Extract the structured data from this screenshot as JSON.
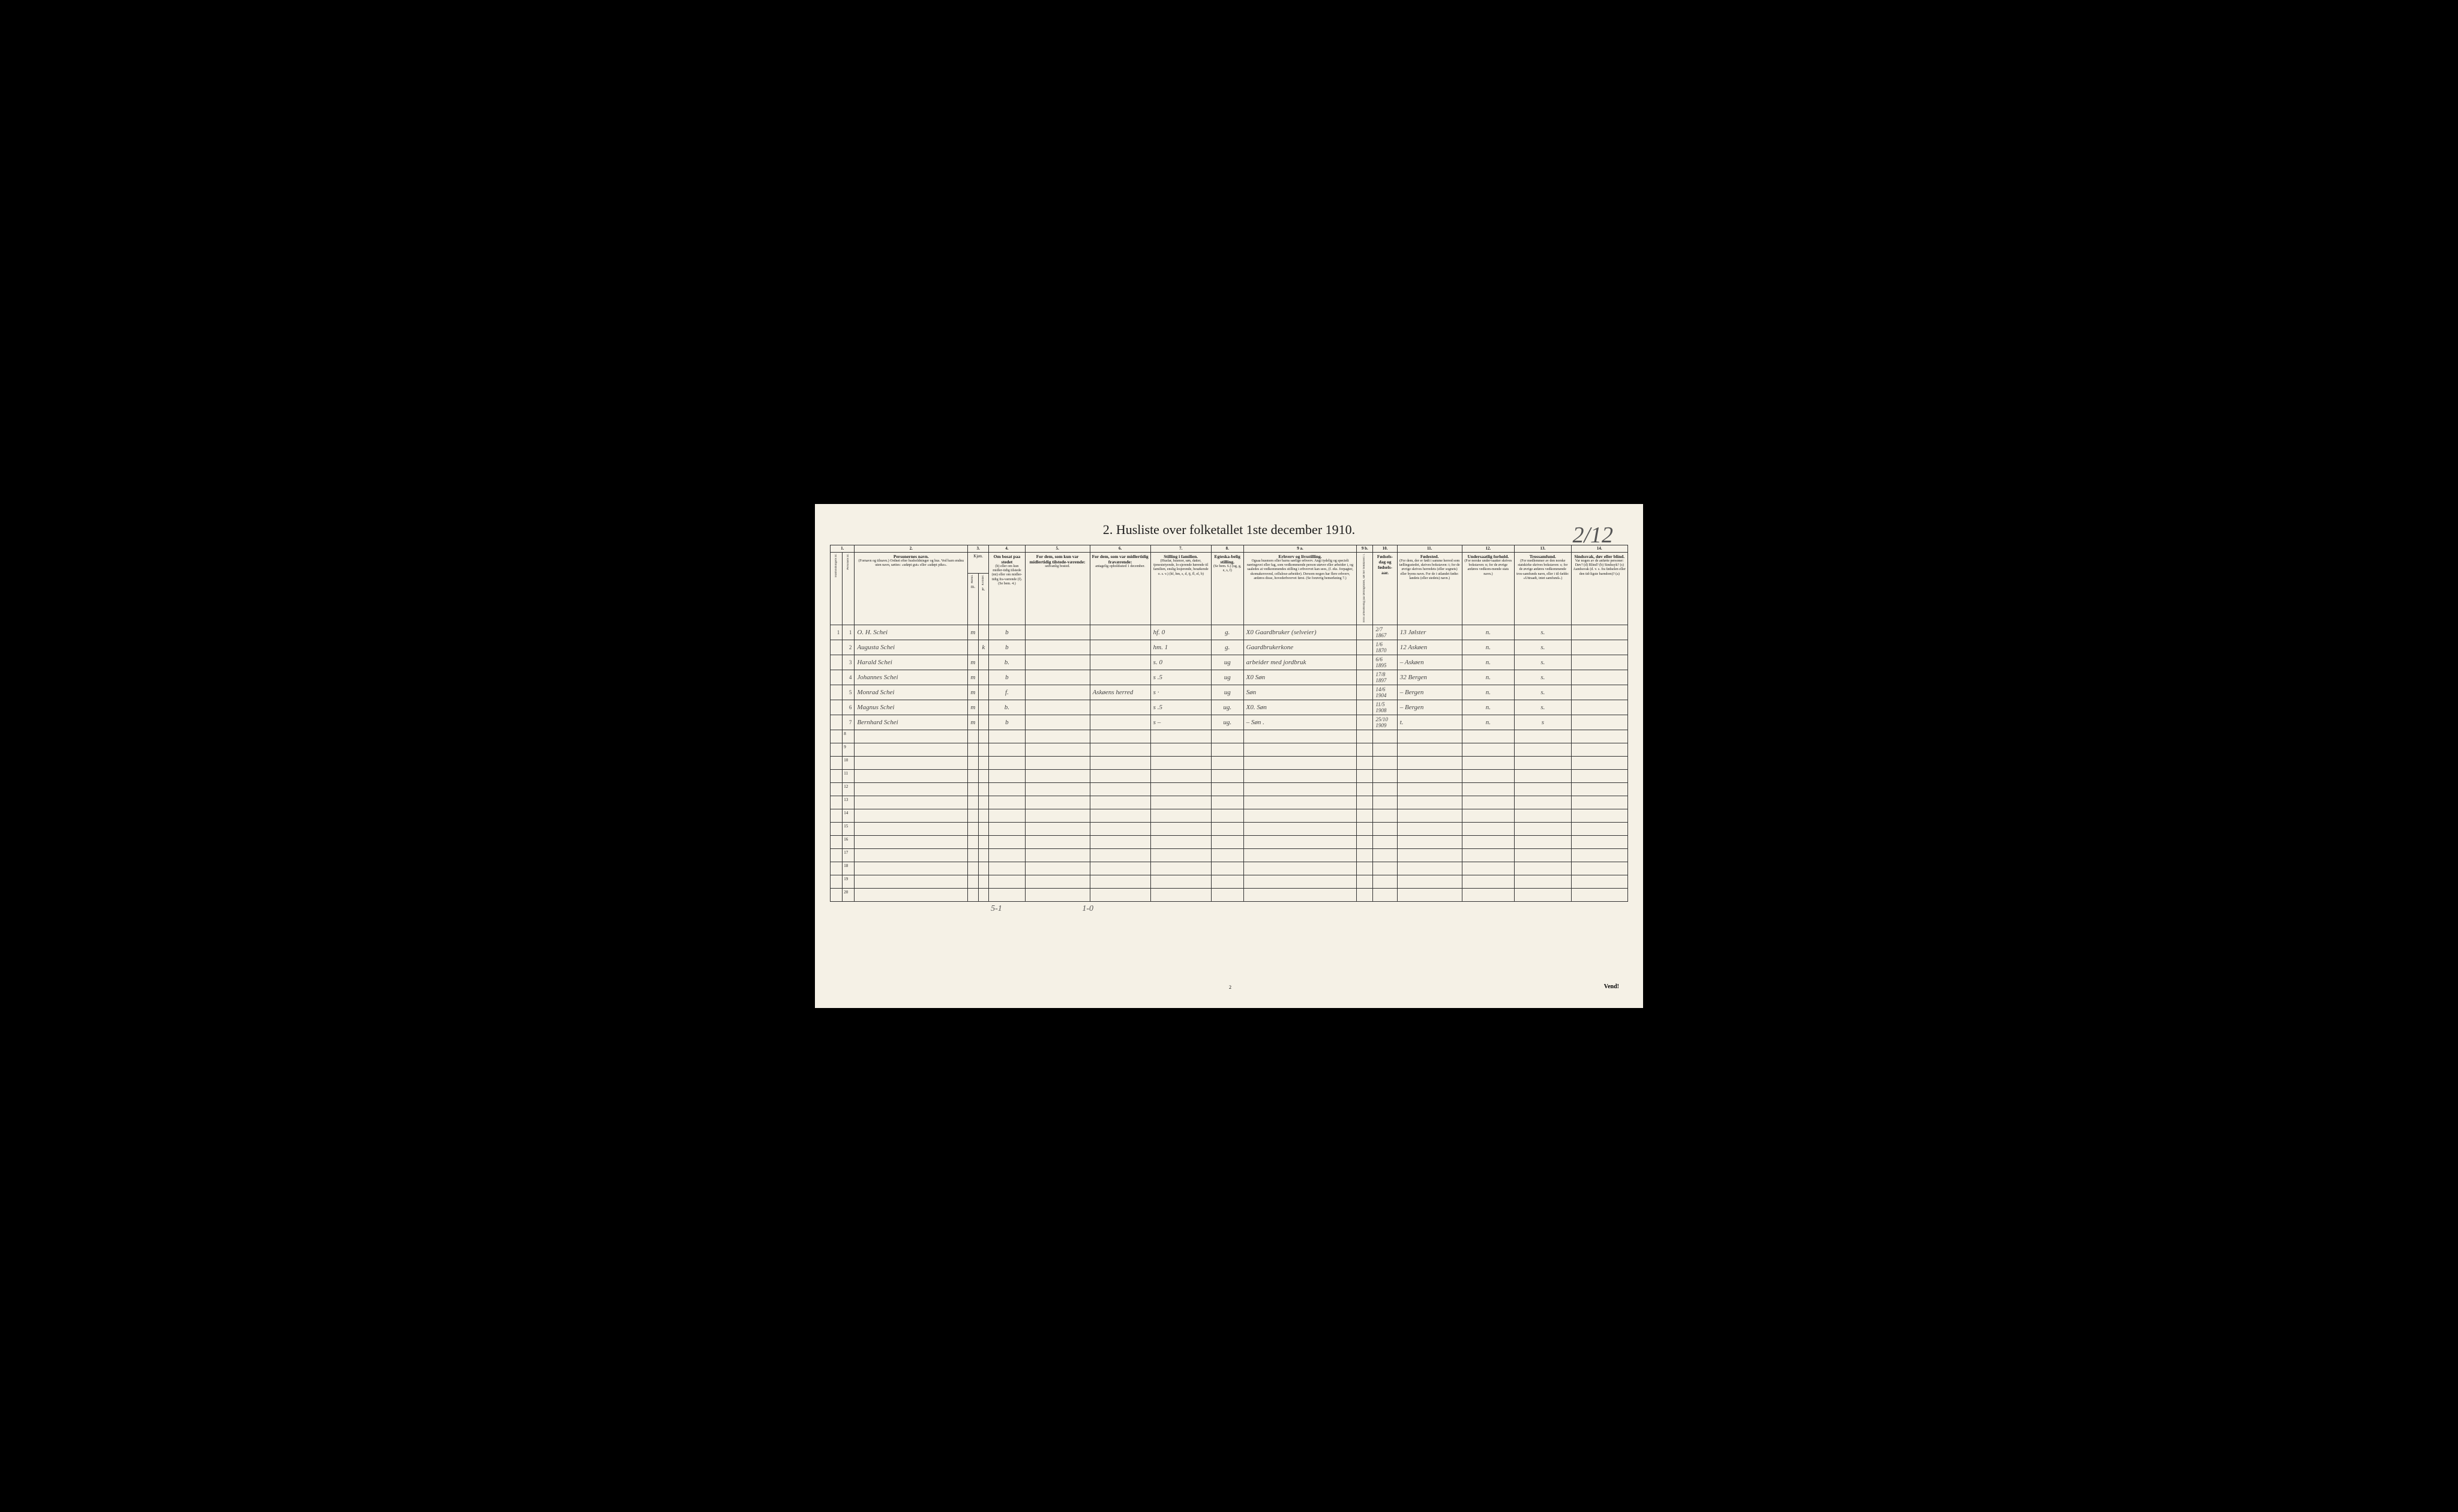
{
  "handwritten_page": "2/12",
  "title": "2.  Husliste over folketallet 1ste december 1910.",
  "column_numbers": [
    "1.",
    "",
    "2.",
    "3.",
    "",
    "4.",
    "5.",
    "6.",
    "7.",
    "8.",
    "9 a.",
    "9 b.",
    "10.",
    "11.",
    "12.",
    "13.",
    "14."
  ],
  "headers": {
    "col1": "Husholdningens nr.",
    "col1b": "Personens nr.",
    "col2_main": "Personernes navn.",
    "col2_sub": "(Fornavn og tilnavn.)\nOrdnet efter husholdninger og hus.\nVed barn endnu uten navn, sættes: «udøpt gut» eller «udøpt pike».",
    "col3": "Kjøn.",
    "col3_m": "Mænd.",
    "col3_k": "Kvinder.",
    "col4_main": "Om bosat paa stedet",
    "col4_sub": "(b) eller om kun midler-tidig tilstede (mt) eller om midler-tidig fra-værende (f).\n(Se bem. 4.)",
    "col5_main": "For dem, som kun var midlertidig tilstede-værende:",
    "col5_sub": "sedvanlig bosted.",
    "col6_main": "For dem, som var midlertidig fraværende:",
    "col6_sub": "antagelig opholdssted 1 december.",
    "col7_main": "Stilling i familien.",
    "col7_sub": "(Husfar, husmor, søn, datter, tjenestetyende, lo-sjerende hørende til familien, enslig losjerende, besøkende o. s. v.)\n(hf, hm, s, d, tj, fl, el, b)",
    "col8_main": "Egteska-belig stilling.",
    "col8_sub": "(Se bem. 6.)\n(ug, g, e, s, f)",
    "col9a_main": "Erhverv og livsstilling.",
    "col9a_sub": "Ogsaa husmors eller barns særlige erhverv. Angi tydelig og specielt næringsvei eller fag, som vedkommende person utøver eller arbeider i, og saaledes at vedkommendes stilling i erhvervet kan sees, (f. eks. forpagter, skomakersvend, cellulose-arbeider). Dersom nogen har flere erhverv, anføres disse, hovederhvervet først.\n(Se forøvrig bemerkning 7.)",
    "col9b": "Hvis arbeidsledig paa tællingstiden, sæt her bokstaven: l.",
    "col10_main": "Fødsels-dag og fødsels-aar.",
    "col11_main": "Fødested.",
    "col11_sub": "(For dem, der er født i samme herred som tællingsstedet, skrives bokstaven: t; for de øvrige skrives herredets (eller sognets) eller byens navn. For de i utlandet fødte: landets (eller stedets) navn.)",
    "col12_main": "Undersaatlig forhold.",
    "col12_sub": "(For norske under-saatter skrives bokstaven: n; for de øvrige anføres vedkom-mende stats navn.)",
    "col13_main": "Trossamfund.",
    "col13_sub": "(For medlemmer av den norske statskirke skrives bokstaven: s; for de øvrige anføres vedkommende tros-samfunds navn, eller i til-fælde: «Uttraadt, intet samfund».)",
    "col14_main": "Sindssvak, døv eller blind.",
    "col14_sub": "Var nogen av de anførte personer:\nDøv? (d)\nBlind? (b)\nSindssyk? (s)\nAandssvak (d. v. s. fra fødselen eller den tid-ligste barndom)? (a)"
  },
  "rows": [
    {
      "hnum": "1",
      "pnum": "1",
      "name": "O. H. Schei",
      "m": "m",
      "k": "",
      "b": "b",
      "col5": "",
      "col6": "",
      "col7": "hf.       0",
      "col8": "g.",
      "col9a": "X0 Gaardbruker (selveier)",
      "col9b": "",
      "col10": "2/7 1867",
      "col11": "13 Jølster",
      "col12": "n.",
      "col13": "s.",
      "col14": ""
    },
    {
      "hnum": "",
      "pnum": "2",
      "name": "Augusta Schei",
      "m": "",
      "k": "k",
      "b": "b",
      "col5": "",
      "col6": "",
      "col7": "hm.      1",
      "col8": "g.",
      "col9a": "Gaardbrukerkone",
      "col9b": "",
      "col10": "1/6 1870",
      "col11": "12 Askøen",
      "col12": "n.",
      "col13": "s.",
      "col14": ""
    },
    {
      "hnum": "",
      "pnum": "3",
      "name": "Harald Schei",
      "m": "m",
      "k": "",
      "b": "b.",
      "col5": "",
      "col6": "",
      "col7": "s.       0",
      "col8": "ug",
      "col9a": "arbeider med jordbruk",
      "col9b": "",
      "col10": "6/6 1895",
      "col11": "– Askøen",
      "col12": "n.",
      "col13": "s.",
      "col14": ""
    },
    {
      "hnum": "",
      "pnum": "4",
      "name": "Johannes Schei",
      "m": "m",
      "k": "",
      "b": "b",
      "col5": "",
      "col6": "",
      "col7": "s        .5",
      "col8": "ug",
      "col9a": "X0    Søn",
      "col9b": "",
      "col10": "17/8 1897",
      "col11": "32 Bergen",
      "col12": "n.",
      "col13": "s.",
      "col14": ""
    },
    {
      "hnum": "",
      "pnum": "5",
      "name": "Monrad Schei",
      "m": "m",
      "k": "",
      "b": "f.",
      "col5": "",
      "col6": "Askøens herred",
      "col7": "s       ·",
      "col8": "ug",
      "col9a": "Søn",
      "col9b": "",
      "col10": "14/6 1904",
      "col11": "– Bergen",
      "col12": "n.",
      "col13": "s.",
      "col14": ""
    },
    {
      "hnum": "",
      "pnum": "6",
      "name": "Magnus Schei",
      "m": "m",
      "k": "",
      "b": "b.",
      "col5": "",
      "col6": "",
      "col7": "s      .5",
      "col8": "ug.",
      "col9a": "X0.    Søn",
      "col9b": "",
      "col10": "11/5 1908",
      "col11": "– Bergen",
      "col12": "n.",
      "col13": "s.",
      "col14": ""
    },
    {
      "hnum": "",
      "pnum": "7",
      "name": "Bernhard Schei",
      "m": "m",
      "k": "",
      "b": "b",
      "col5": "",
      "col6": "",
      "col7": "s      –",
      "col8": "ug.",
      "col9a": "–     Søn  .",
      "col9b": "",
      "col10": "25/10 1909",
      "col11": "t.",
      "col12": "n.",
      "col13": "s",
      "col14": ""
    }
  ],
  "empty_row_nums": [
    "8",
    "9",
    "10",
    "11",
    "12",
    "13",
    "14",
    "15",
    "16",
    "17",
    "18",
    "19",
    "20"
  ],
  "footer_totals": {
    "col3": "5-1",
    "col5": "1-0"
  },
  "bottom_page_num": "2",
  "vend": "Vend!",
  "colors": {
    "page_bg": "#f5f1e6",
    "outer_bg": "#000000",
    "text": "#1a1a1a",
    "handwriting": "#444444",
    "border": "#333333"
  }
}
